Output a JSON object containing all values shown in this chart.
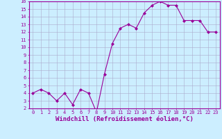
{
  "x": [
    0,
    1,
    2,
    3,
    4,
    5,
    6,
    7,
    8,
    9,
    10,
    11,
    12,
    13,
    14,
    15,
    16,
    17,
    18,
    19,
    20,
    21,
    22,
    23
  ],
  "y": [
    4.0,
    4.5,
    4.0,
    3.0,
    4.0,
    2.5,
    4.5,
    4.0,
    1.5,
    6.5,
    10.5,
    12.5,
    13.0,
    12.5,
    14.5,
    15.5,
    16.0,
    15.5,
    15.5,
    13.5,
    13.5,
    13.5,
    12.0,
    12.0
  ],
  "line_color": "#990099",
  "marker": "D",
  "markersize": 2.0,
  "linewidth": 0.8,
  "xlabel": "Windchill (Refroidissement éolien,°C)",
  "xlim": [
    -0.5,
    23.5
  ],
  "ylim": [
    2,
    16
  ],
  "yticks": [
    2,
    3,
    4,
    5,
    6,
    7,
    8,
    9,
    10,
    11,
    12,
    13,
    14,
    15,
    16
  ],
  "xticks": [
    0,
    1,
    2,
    3,
    4,
    5,
    6,
    7,
    8,
    9,
    10,
    11,
    12,
    13,
    14,
    15,
    16,
    17,
    18,
    19,
    20,
    21,
    22,
    23
  ],
  "bg_color": "#cceeff",
  "grid_color": "#aaaacc",
  "tick_label_color": "#990099",
  "axis_label_color": "#990099",
  "border_color": "#990099",
  "tick_fontsize": 5.0,
  "xlabel_fontsize": 6.5
}
